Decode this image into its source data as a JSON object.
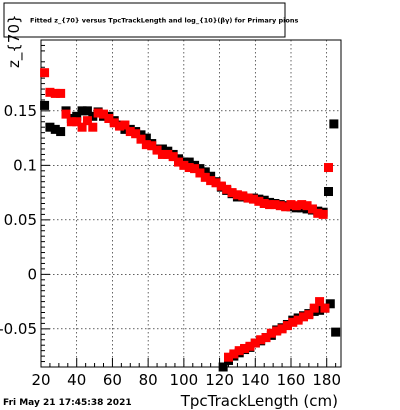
{
  "title": "Fitted z_{70} versus TpcTrackLength and log_{10}(βγ) for Primary pions",
  "timestamp": "Fri May 21 17:45:38 2021",
  "chart_data": {
    "type": "scatter",
    "title": "Fitted z_{70} versus TpcTrackLength and log_{10}(βγ) for Primary pions",
    "xlabel": "TpcTrackLength (cm)",
    "ylabel": "z_{70}",
    "xlim": [
      20,
      188
    ],
    "ylim": [
      -0.085,
      0.215
    ],
    "x_ticks": [
      20,
      40,
      60,
      80,
      100,
      120,
      140,
      160,
      180
    ],
    "y_ticks": [
      -0.05,
      0,
      0.05,
      0.1,
      0.15
    ],
    "x_tick_labels": [
      "20",
      "40",
      "60",
      "80",
      "100",
      "120",
      "140",
      "160",
      "180"
    ],
    "y_tick_labels": [
      "-0.05",
      "0",
      "0.05",
      "0.1",
      "0.15"
    ],
    "grid": true,
    "series": [
      {
        "color": "#000000",
        "marker": "square",
        "points": [
          [
            22,
            0.155
          ],
          [
            25,
            0.135
          ],
          [
            28,
            0.133
          ],
          [
            31,
            0.131
          ],
          [
            34,
            0.15
          ],
          [
            37,
            0.143
          ],
          [
            40,
            0.145
          ],
          [
            43,
            0.15
          ],
          [
            46,
            0.15
          ],
          [
            49,
            0.145
          ],
          [
            52,
            0.149
          ],
          [
            55,
            0.145
          ],
          [
            58,
            0.145
          ],
          [
            61,
            0.141
          ],
          [
            64,
            0.137
          ],
          [
            67,
            0.133
          ],
          [
            70,
            0.133
          ],
          [
            73,
            0.131
          ],
          [
            76,
            0.128
          ],
          [
            79,
            0.125
          ],
          [
            82,
            0.12
          ],
          [
            85,
            0.115
          ],
          [
            88,
            0.115
          ],
          [
            91,
            0.113
          ],
          [
            94,
            0.11
          ],
          [
            97,
            0.106
          ],
          [
            100,
            0.103
          ],
          [
            103,
            0.103
          ],
          [
            106,
            0.1
          ],
          [
            109,
            0.097
          ],
          [
            112,
            0.094
          ],
          [
            115,
            0.09
          ],
          [
            118,
            0.085
          ],
          [
            121,
            0.08
          ],
          [
            124,
            0.077
          ],
          [
            127,
            0.074
          ],
          [
            130,
            0.071
          ],
          [
            133,
            0.071
          ],
          [
            136,
            0.07
          ],
          [
            139,
            0.07
          ],
          [
            142,
            0.069
          ],
          [
            145,
            0.068
          ],
          [
            148,
            0.066
          ],
          [
            151,
            0.065
          ],
          [
            154,
            0.064
          ],
          [
            157,
            0.063
          ],
          [
            160,
            0.062
          ],
          [
            163,
            0.061
          ],
          [
            166,
            0.061
          ],
          [
            169,
            0.06
          ],
          [
            172,
            0.059
          ],
          [
            175,
            0.058
          ],
          [
            178,
            0.057
          ],
          [
            181,
            0.076
          ],
          [
            184,
            0.138
          ],
          [
            122,
            -0.085
          ],
          [
            125,
            -0.079
          ],
          [
            128,
            -0.075
          ],
          [
            131,
            -0.072
          ],
          [
            134,
            -0.069
          ],
          [
            137,
            -0.067
          ],
          [
            140,
            -0.063
          ],
          [
            143,
            -0.061
          ],
          [
            146,
            -0.058
          ],
          [
            149,
            -0.056
          ],
          [
            152,
            -0.051
          ],
          [
            155,
            -0.049
          ],
          [
            158,
            -0.046
          ],
          [
            161,
            -0.042
          ],
          [
            164,
            -0.04
          ],
          [
            167,
            -0.038
          ],
          [
            170,
            -0.036
          ],
          [
            173,
            -0.034
          ],
          [
            176,
            -0.033
          ],
          [
            179,
            -0.031
          ],
          [
            182,
            -0.027
          ],
          [
            185,
            -0.053
          ]
        ]
      },
      {
        "color": "#ff0000",
        "marker": "square",
        "points": [
          [
            22,
            0.185
          ],
          [
            25,
            0.167
          ],
          [
            28,
            0.166
          ],
          [
            31,
            0.166
          ],
          [
            34,
            0.147
          ],
          [
            37,
            0.14
          ],
          [
            40,
            0.14
          ],
          [
            43,
            0.135
          ],
          [
            46,
            0.141
          ],
          [
            49,
            0.135
          ],
          [
            52,
            0.148
          ],
          [
            55,
            0.147
          ],
          [
            58,
            0.143
          ],
          [
            61,
            0.139
          ],
          [
            64,
            0.136
          ],
          [
            67,
            0.137
          ],
          [
            70,
            0.131
          ],
          [
            73,
            0.129
          ],
          [
            76,
            0.124
          ],
          [
            79,
            0.119
          ],
          [
            82,
            0.118
          ],
          [
            85,
            0.114
          ],
          [
            88,
            0.11
          ],
          [
            91,
            0.11
          ],
          [
            94,
            0.108
          ],
          [
            97,
            0.103
          ],
          [
            100,
            0.1
          ],
          [
            103,
            0.098
          ],
          [
            106,
            0.097
          ],
          [
            109,
            0.093
          ],
          [
            112,
            0.089
          ],
          [
            115,
            0.086
          ],
          [
            118,
            0.084
          ],
          [
            121,
            0.081
          ],
          [
            124,
            0.078
          ],
          [
            127,
            0.075
          ],
          [
            130,
            0.073
          ],
          [
            133,
            0.072
          ],
          [
            136,
            0.07
          ],
          [
            139,
            0.069
          ],
          [
            142,
            0.067
          ],
          [
            145,
            0.065
          ],
          [
            148,
            0.064
          ],
          [
            151,
            0.064
          ],
          [
            154,
            0.063
          ],
          [
            157,
            0.062
          ],
          [
            160,
            0.064
          ],
          [
            163,
            0.063
          ],
          [
            166,
            0.064
          ],
          [
            169,
            0.063
          ],
          [
            172,
            0.06
          ],
          [
            175,
            0.056
          ],
          [
            178,
            0.055
          ],
          [
            181,
            0.098
          ],
          [
            125,
            -0.076
          ],
          [
            128,
            -0.073
          ],
          [
            131,
            -0.07
          ],
          [
            134,
            -0.068
          ],
          [
            137,
            -0.066
          ],
          [
            140,
            -0.063
          ],
          [
            143,
            -0.06
          ],
          [
            146,
            -0.058
          ],
          [
            149,
            -0.054
          ],
          [
            152,
            -0.052
          ],
          [
            155,
            -0.05
          ],
          [
            158,
            -0.047
          ],
          [
            161,
            -0.044
          ],
          [
            164,
            -0.042
          ],
          [
            167,
            -0.039
          ],
          [
            170,
            -0.037
          ],
          [
            173,
            -0.031
          ],
          [
            176,
            -0.025
          ],
          [
            179,
            -0.031
          ]
        ]
      }
    ]
  }
}
